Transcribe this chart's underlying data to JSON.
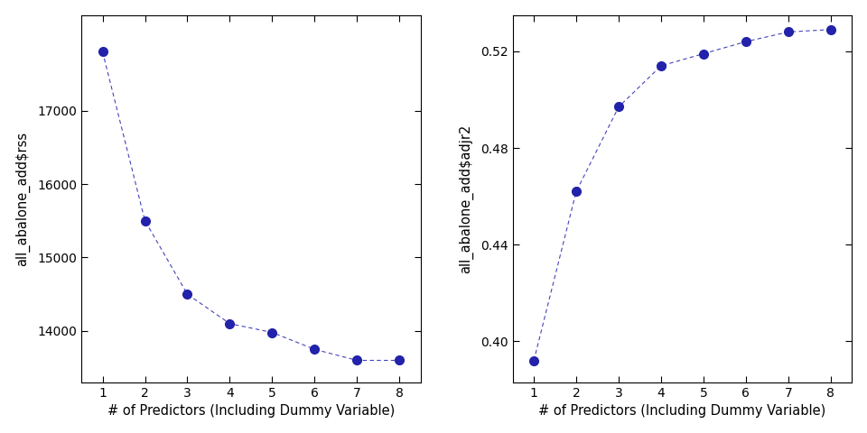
{
  "x": [
    1,
    2,
    3,
    4,
    5,
    6,
    7,
    8
  ],
  "rss_values": [
    17800,
    15500,
    14500,
    14100,
    13980,
    13750,
    13600,
    13600
  ],
  "adjr2_values": [
    0.392,
    0.462,
    0.497,
    0.514,
    0.519,
    0.524,
    0.528,
    0.529
  ],
  "rss_ylabel": "all_abalone_add$rss",
  "adjr2_ylabel": "all_abalone_add$adjr2",
  "xlabel": "# of Predictors (Including Dummy Variable)",
  "line_color": "#4444bb",
  "marker_color": "#2222aa",
  "bg_color": "#ffffff",
  "fig_bg_color": "#ffffff",
  "rss_ylim": [
    13300,
    18300
  ],
  "adjr2_ylim": [
    0.383,
    0.535
  ],
  "rss_yticks": [
    14000,
    15000,
    16000,
    17000
  ],
  "adjr2_yticks": [
    0.4,
    0.44,
    0.48,
    0.52
  ],
  "xticks": [
    1,
    2,
    3,
    4,
    5,
    6,
    7,
    8
  ]
}
